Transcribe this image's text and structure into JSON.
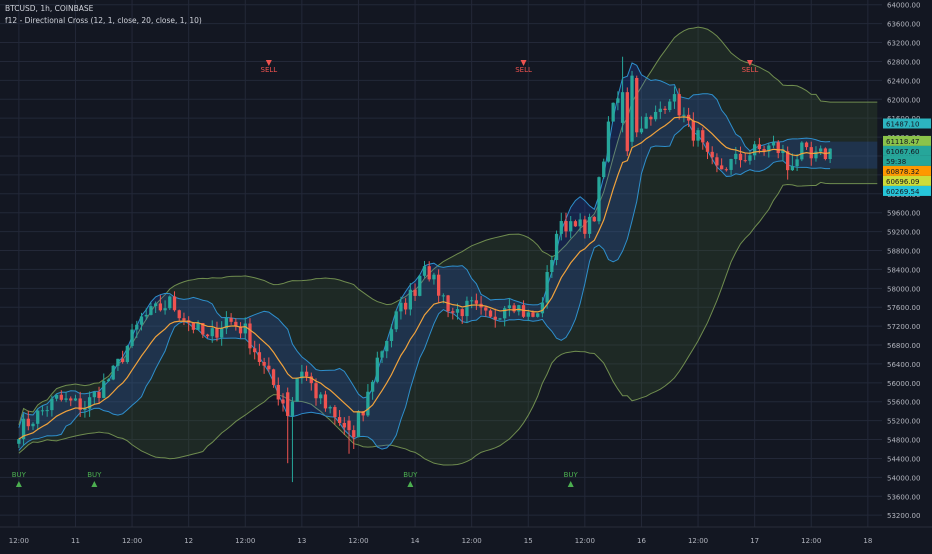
{
  "header": {
    "symbol_line": "BTCUSD, 1h, COINBASE",
    "indicator_line": "f12 - Directional Cross (12, 1, close, 20, close, 1, 10)"
  },
  "colors": {
    "background": "#131722",
    "grid": "#232838",
    "axis_text": "#b2b5be",
    "up": "#26a69a",
    "down": "#ef5350",
    "ema": "#f0a23c",
    "inner_band_line": "#2e8fcc",
    "inner_band_fill": "#2962ff",
    "outer_band_line": "#6f8c4f",
    "outer_band_fill": "#3d5a2e",
    "buy": "#4caf50",
    "sell": "#ef5350"
  },
  "chart_data": {
    "type": "candlestick",
    "title": "BTCUSD, 1h, COINBASE",
    "subtitle": "f12 - Directional Cross (12, 1, close, 20, close, 1, 10)",
    "ylim": [
      52950,
      64100
    ],
    "y_ticks": [
      53200,
      53600,
      54000,
      54400,
      54800,
      55200,
      55600,
      56000,
      56400,
      56800,
      57200,
      57600,
      58000,
      58400,
      58800,
      59200,
      59600,
      60000,
      60400,
      60800,
      61200,
      61600,
      62000,
      62400,
      62800,
      63200,
      63600,
      64000
    ],
    "y_tick_labels": [
      "53200.00",
      "53600.00",
      "54000.00",
      "54400.00",
      "54800.00",
      "55200.00",
      "55600.00",
      "56000.00",
      "56400.00",
      "56800.00",
      "57200.00",
      "57600.00",
      "58000.00",
      "58400.00",
      "58800.00",
      "59200.00",
      "59600.00",
      "60000.00",
      "60400.00",
      "60800.00",
      "61200.00",
      "61600.00",
      "62000.00",
      "62400.00",
      "62800.00",
      "63200.00",
      "63600.00",
      "64000.00"
    ],
    "x_ticks": [
      {
        "label": "12:00",
        "t": 0
      },
      {
        "label": "11",
        "t": 12
      },
      {
        "label": "12:00",
        "t": 24
      },
      {
        "label": "12",
        "t": 36
      },
      {
        "label": "12:00",
        "t": 48
      },
      {
        "label": "13",
        "t": 60
      },
      {
        "label": "12:00",
        "t": 72
      },
      {
        "label": "14",
        "t": 84
      },
      {
        "label": "12:00",
        "t": 96
      },
      {
        "label": "15",
        "t": 108
      },
      {
        "label": "12:00",
        "t": 120
      },
      {
        "label": "16",
        "t": 132
      },
      {
        "label": "12:00",
        "t": 144
      },
      {
        "label": "17",
        "t": 156
      },
      {
        "label": "12:00",
        "t": 168
      },
      {
        "label": "18",
        "t": 180
      }
    ],
    "xlim": [
      -4,
      183
    ],
    "keypoints": [
      [
        0,
        55000
      ],
      [
        8,
        55650
      ],
      [
        14,
        55500
      ],
      [
        20,
        56200
      ],
      [
        26,
        57350
      ],
      [
        32,
        57700
      ],
      [
        36,
        57300
      ],
      [
        40,
        56900
      ],
      [
        44,
        57350
      ],
      [
        48,
        57100
      ],
      [
        52,
        56300
      ],
      [
        56,
        55600
      ],
      [
        60,
        56300
      ],
      [
        64,
        55600
      ],
      [
        68,
        55100
      ],
      [
        70,
        55000
      ],
      [
        73,
        55350
      ],
      [
        76,
        56500
      ],
      [
        80,
        57400
      ],
      [
        84,
        58000
      ],
      [
        86,
        58600
      ],
      [
        88,
        58100
      ],
      [
        92,
        57500
      ],
      [
        96,
        57600
      ],
      [
        100,
        57300
      ],
      [
        104,
        57800
      ],
      [
        108,
        57400
      ],
      [
        110,
        57400
      ],
      [
        112,
        58200
      ],
      [
        114,
        59200
      ],
      [
        118,
        59500
      ],
      [
        120,
        59100
      ],
      [
        122,
        59600
      ],
      [
        124,
        60800
      ],
      [
        126,
        61900
      ],
      [
        128,
        62000
      ],
      [
        130,
        61600
      ],
      [
        134,
        61500
      ],
      [
        138,
        62100
      ],
      [
        140,
        61800
      ],
      [
        142,
        61400
      ],
      [
        144,
        61200
      ],
      [
        146,
        60700
      ],
      [
        148,
        60500
      ],
      [
        152,
        60700
      ],
      [
        156,
        60900
      ],
      [
        160,
        61000
      ],
      [
        164,
        60700
      ],
      [
        166,
        60900
      ],
      [
        168,
        60700
      ],
      [
        172,
        60900
      ]
    ],
    "highlights": [
      {
        "t": 128,
        "open": 61500,
        "close": 62150,
        "high": 62900,
        "low": 61300
      },
      {
        "t": 129,
        "open": 62150,
        "close": 60900,
        "high": 62250,
        "low": 60800
      },
      {
        "t": 130,
        "open": 61100,
        "close": 62500,
        "high": 62600,
        "low": 61000
      },
      {
        "t": 131,
        "open": 62450,
        "close": 61300,
        "high": 62500,
        "low": 61200
      },
      {
        "t": 163,
        "open": 60900,
        "close": 60500,
        "high": 61000,
        "low": 60300
      },
      {
        "t": 57,
        "open": 55800,
        "close": 55300,
        "high": 55900,
        "low": 54300
      },
      {
        "t": 58,
        "open": 55300,
        "close": 55600,
        "high": 55700,
        "low": 53900
      },
      {
        "t": 70,
        "open": 55200,
        "close": 55000,
        "high": 55300,
        "low": 54500
      },
      {
        "t": 71,
        "open": 55000,
        "close": 54850,
        "high": 55100,
        "low": 54600
      }
    ],
    "signals": [
      {
        "type": "BUY",
        "t": 0,
        "label": "BUY"
      },
      {
        "type": "BUY",
        "t": 16,
        "label": "BUY"
      },
      {
        "type": "SELL",
        "t": 53,
        "label": "SELL"
      },
      {
        "type": "BUY",
        "t": 83,
        "label": "BUY"
      },
      {
        "type": "SELL",
        "t": 107,
        "label": "SELL"
      },
      {
        "type": "BUY",
        "t": 117,
        "label": "BUY"
      },
      {
        "type": "SELL",
        "t": 155,
        "label": "SELL"
      }
    ],
    "price_labels": [
      {
        "text": "61487.10",
        "value": 61487.1,
        "color": "#2cb5c0"
      },
      {
        "text": "61118.47",
        "value": 61118.47,
        "color": "#8bc34a"
      },
      {
        "text": "61067.60",
        "value": 61067.6,
        "color": "#26a69a"
      },
      {
        "text": "59:38",
        "value": 60880,
        "color": "#26a69a"
      },
      {
        "text": "60878.32",
        "value": 60878.32,
        "color": "#ff9800"
      },
      {
        "text": "60696.09",
        "value": 60696.09,
        "color": "#cddc39"
      },
      {
        "text": "60269.54",
        "value": 60269.54,
        "color": "#26c6da"
      }
    ]
  }
}
